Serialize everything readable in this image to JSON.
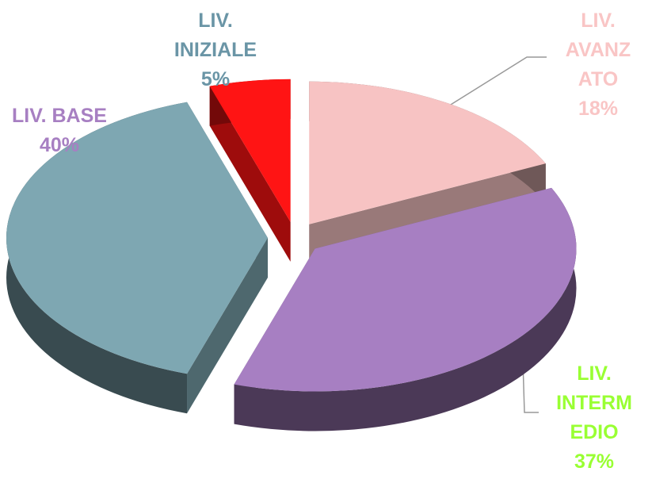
{
  "chart_data": {
    "type": "pie",
    "categories": [
      "LIV. AVANZATO",
      "LIV. INTERMEDIO",
      "LIV. BASE",
      "LIV. INIZIALE"
    ],
    "values": [
      18,
      37,
      40,
      5
    ],
    "value_labels": [
      "18%",
      "37%",
      "40%",
      "5%"
    ],
    "colors": [
      "#f7c3c3",
      "#a77fc2",
      "#7ea7b2",
      "#ff1414"
    ],
    "label_colors": [
      "#f9c5c5",
      "#99ff33",
      "#a77fc2",
      "#6a95a6"
    ]
  }
}
